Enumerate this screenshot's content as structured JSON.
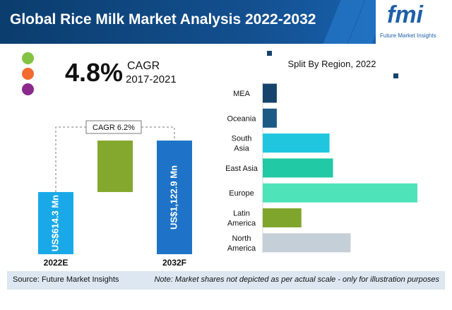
{
  "header": {
    "title": "Global Rice Milk Market Analysis 2022-2032",
    "logo_text": "fmi",
    "logo_subtitle": "Future Market Insights"
  },
  "legend_dots": [
    {
      "color": "#82c341"
    },
    {
      "color": "#f26a2e"
    },
    {
      "color": "#8b2a8b"
    }
  ],
  "cagr": {
    "value": "4.8%",
    "label": "CAGR",
    "period": "2017-2021"
  },
  "colors": {
    "market_bar": "#1aa9e8",
    "market_bar_2032": "#1e73c8",
    "growth_block": "#84a82e"
  },
  "chart_data": [
    {
      "type": "bar",
      "title": "",
      "categories": [
        "2022E",
        "2032F"
      ],
      "values": [
        614.3,
        1122.9
      ],
      "bar_labels": [
        "US$614.3 Mn",
        "US$1,122.9 Mn"
      ],
      "annotation": "CAGR 6.2%",
      "ylim": [
        0,
        1200
      ]
    },
    {
      "type": "bar",
      "orientation": "horizontal",
      "title": "Split By Region, 2022",
      "categories": [
        "MEA",
        "Oceania",
        "South Asia",
        "East Asia",
        "Europe",
        "Latin America",
        "North America"
      ],
      "category_lines": [
        [
          "MEA"
        ],
        [
          "Oceania"
        ],
        [
          "South",
          "Asia"
        ],
        [
          "East Asia"
        ],
        [
          "Europe"
        ],
        [
          "Latin",
          "America"
        ],
        [
          "North",
          "America"
        ]
      ],
      "values": [
        4,
        4,
        19,
        20,
        44,
        11,
        25
      ],
      "colors": [
        "#15436b",
        "#1c5a86",
        "#20c6dd",
        "#21c9a4",
        "#4ee3b9",
        "#7fa52c",
        "#c5cfd8"
      ]
    }
  ],
  "footer": {
    "source": "Source: Future Market Insights",
    "note": "Note: Market shares not depicted as per actual scale - only for illustration purposes"
  }
}
